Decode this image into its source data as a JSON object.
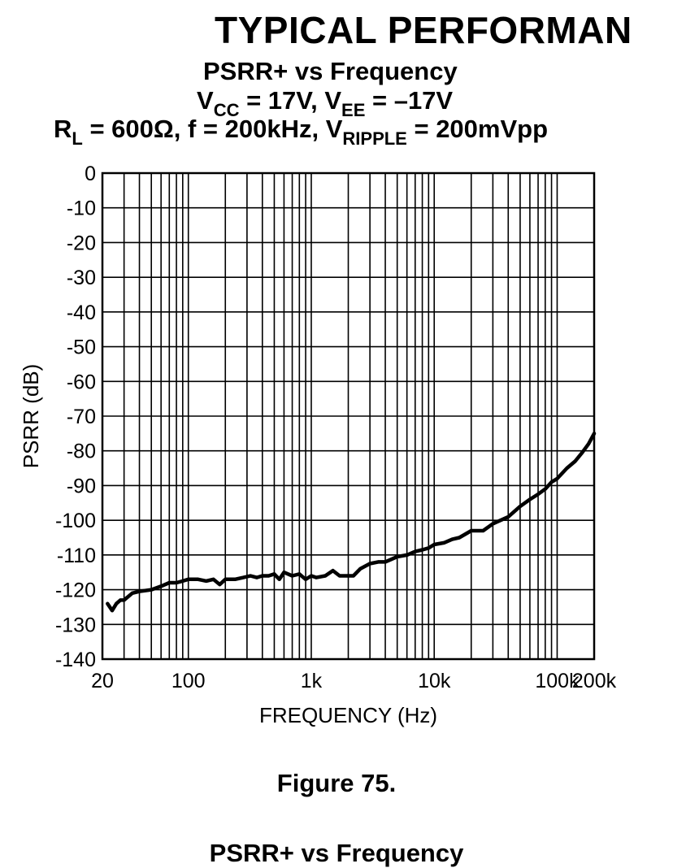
{
  "page": {
    "section_header": "TYPICAL PERFORMAN",
    "figure_caption": "Figure 75.",
    "next_chart_title": "PSRR+ vs Frequency"
  },
  "chart_data": {
    "type": "line",
    "title": {
      "line1": "PSRR+ vs Frequency",
      "line2_prefix": "V",
      "line2_sub1": "CC",
      "line2_mid": " = 17V, V",
      "line2_sub2": "EE",
      "line2_end": " = –17V",
      "line3_prefix": "R",
      "line3_sub1": "L",
      "line3_mid": " = 600Ω, f = 200kHz, V",
      "line3_sub2": "RIPPLE",
      "line3_end": " = 200mVpp"
    },
    "xlabel": "FREQUENCY (Hz)",
    "ylabel": "PSRR (dB)",
    "x_scale": "log",
    "xlim": [
      20,
      200000
    ],
    "ylim": [
      -140,
      0
    ],
    "x_ticks": [
      {
        "value": 20,
        "label": "20"
      },
      {
        "value": 100,
        "label": "100"
      },
      {
        "value": 1000,
        "label": "1k"
      },
      {
        "value": 10000,
        "label": "10k"
      },
      {
        "value": 100000,
        "label": "100k"
      },
      {
        "value": 200000,
        "label": "200k"
      }
    ],
    "y_ticks": [
      0,
      -10,
      -20,
      -30,
      -40,
      -50,
      -60,
      -70,
      -80,
      -90,
      -100,
      -110,
      -120,
      -130,
      -140
    ],
    "grid": true,
    "series": [
      {
        "color": "#000000",
        "x": [
          22,
          24,
          26,
          28,
          30,
          35,
          40,
          50,
          60,
          70,
          80,
          90,
          100,
          120,
          140,
          160,
          180,
          200,
          240,
          280,
          320,
          360,
          400,
          450,
          500,
          550,
          600,
          700,
          800,
          900,
          1000,
          1100,
          1300,
          1500,
          1700,
          1900,
          2200,
          2500,
          3000,
          3500,
          4000,
          5000,
          6000,
          7000,
          8000,
          9000,
          10000,
          12000,
          14000,
          16000,
          20000,
          25000,
          30000,
          40000,
          50000,
          60000,
          70000,
          80000,
          90000,
          100000,
          120000,
          140000,
          160000,
          180000,
          200000
        ],
        "y": [
          -124,
          -126,
          -124,
          -123,
          -123,
          -121,
          -120.5,
          -120,
          -119,
          -118,
          -118,
          -117.5,
          -117,
          -117,
          -117.5,
          -117,
          -118.5,
          -117,
          -117,
          -116.5,
          -116,
          -116.5,
          -116,
          -116,
          -115.5,
          -117,
          -115,
          -116,
          -115.5,
          -117,
          -116,
          -116.5,
          -116,
          -114.5,
          -116,
          -116,
          -116,
          -114,
          -112.5,
          -112,
          -112,
          -110.5,
          -110,
          -109,
          -108.5,
          -108,
          -107,
          -106.5,
          -105.5,
          -105,
          -103,
          -103,
          -101,
          -99,
          -96,
          -94,
          -92.5,
          -91,
          -89,
          -88,
          -85,
          -83,
          -80.5,
          -78,
          -75
        ]
      }
    ]
  }
}
